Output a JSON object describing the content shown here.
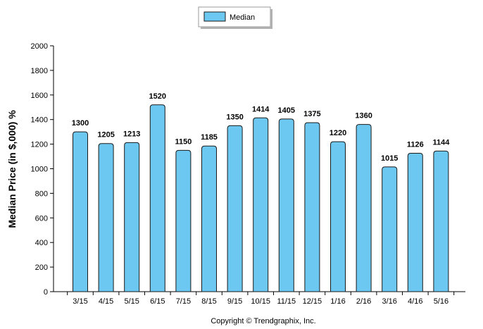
{
  "chart_data": {
    "type": "bar",
    "categories": [
      "3/15",
      "4/15",
      "5/15",
      "6/15",
      "7/15",
      "8/15",
      "9/15",
      "10/15",
      "11/15",
      "12/15",
      "1/16",
      "2/16",
      "3/16",
      "4/16",
      "5/16"
    ],
    "series": [
      {
        "name": "Median",
        "values": [
          1300,
          1205,
          1213,
          1520,
          1150,
          1185,
          1350,
          1414,
          1405,
          1375,
          1220,
          1360,
          1015,
          1126,
          1144
        ]
      }
    ],
    "ylabel": "Median Price (in $,000) %",
    "xlabel": "",
    "ylim": [
      0,
      2000
    ],
    "yticks": [
      0,
      200,
      400,
      600,
      800,
      1000,
      1200,
      1400,
      1600,
      1800,
      2000
    ],
    "grid": false,
    "legend_position": "top-center",
    "data_labels": true
  },
  "colors": {
    "bar_fill": "#6cc8f0",
    "bar_stroke": "#1a1a1a",
    "axis": "#000000"
  },
  "footer": {
    "copyright": "Copyright © Trendgraphix, Inc."
  }
}
